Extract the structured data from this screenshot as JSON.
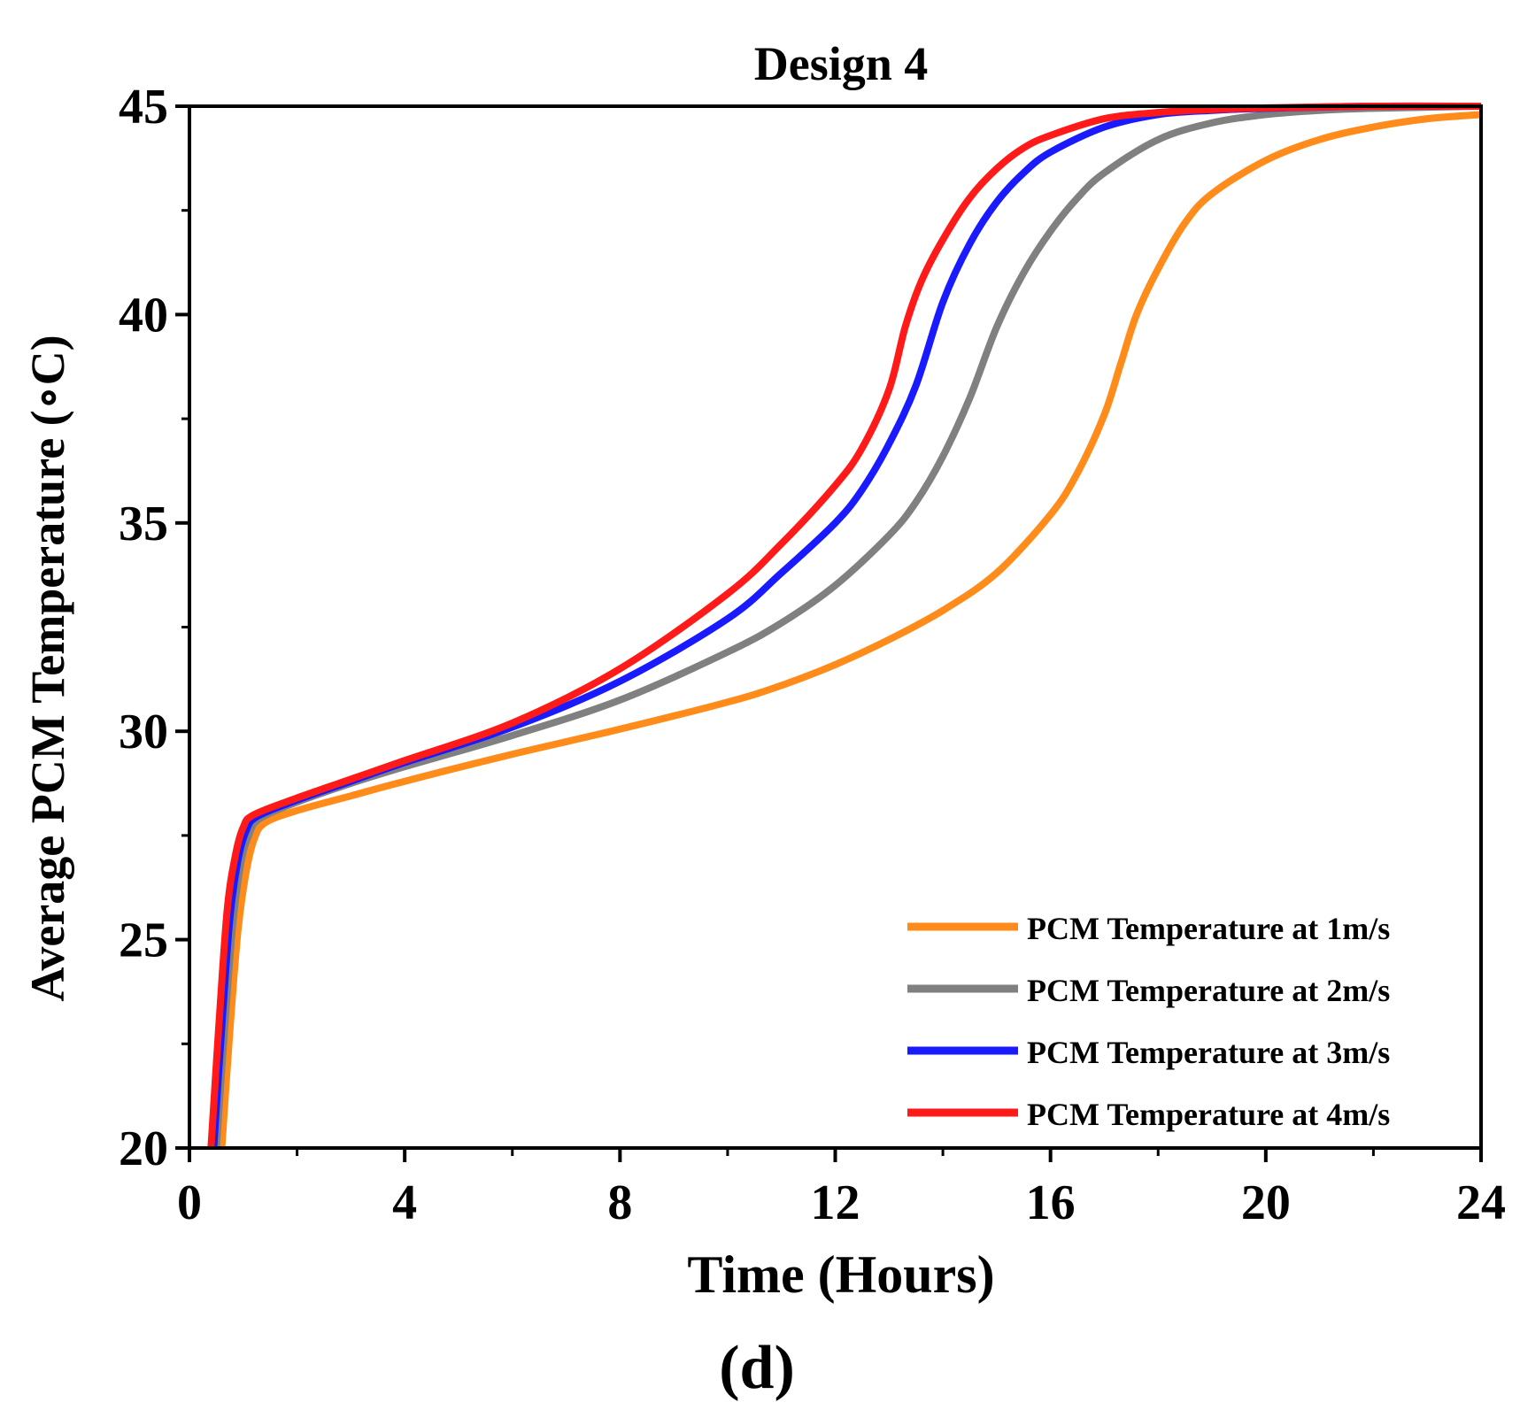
{
  "chart_data": {
    "type": "line",
    "title": "Design 4",
    "xlabel": "Time (Hours)",
    "ylabel": "Average PCM Temperature (∘C)",
    "panel_label": "(d)",
    "xlim": [
      0,
      24
    ],
    "ylim": [
      20,
      45
    ],
    "xticks": [
      0,
      4,
      8,
      12,
      16,
      20,
      24
    ],
    "yticks": [
      20,
      25,
      30,
      35,
      40,
      45
    ],
    "legend_position": "bottom-right",
    "series": [
      {
        "name": "PCM Temperature at 1m/s",
        "color": "#ff8c1a",
        "x": [
          0.6,
          0.75,
          0.9,
          1.05,
          1.2,
          1.4,
          2,
          3,
          4,
          6,
          8,
          10,
          11,
          12,
          13,
          14,
          15,
          16,
          16.5,
          17,
          17.3,
          17.6,
          18,
          18.5,
          19,
          20,
          21,
          22,
          23,
          24
        ],
        "y": [
          20,
          22.8,
          25.2,
          26.6,
          27.4,
          27.8,
          28.1,
          28.45,
          28.8,
          29.45,
          30.05,
          30.7,
          31.1,
          31.6,
          32.2,
          32.9,
          33.8,
          35.2,
          36.2,
          37.6,
          38.8,
          40.0,
          41.1,
          42.2,
          42.9,
          43.7,
          44.2,
          44.5,
          44.7,
          44.8
        ]
      },
      {
        "name": "PCM Temperature at 2m/s",
        "color": "#808080",
        "x": [
          0.5,
          0.65,
          0.8,
          0.95,
          1.1,
          1.3,
          2,
          3,
          4,
          6,
          8,
          10,
          11,
          12,
          13,
          13.5,
          14,
          14.5,
          15,
          15.5,
          16,
          16.5,
          17,
          18,
          19,
          20,
          21,
          22,
          24
        ],
        "y": [
          20,
          22.8,
          25.3,
          26.8,
          27.5,
          27.9,
          28.3,
          28.75,
          29.15,
          29.9,
          30.75,
          31.9,
          32.6,
          33.5,
          34.7,
          35.5,
          36.6,
          38.0,
          39.7,
          41.0,
          42.0,
          42.8,
          43.4,
          44.2,
          44.6,
          44.8,
          44.9,
          44.95,
          45.0
        ]
      },
      {
        "name": "PCM Temperature at 3m/s",
        "color": "#1a1aff",
        "x": [
          0.45,
          0.6,
          0.75,
          0.9,
          1.05,
          1.25,
          2,
          3,
          4,
          6,
          8,
          10,
          11,
          12,
          12.5,
          13,
          13.5,
          14,
          14.5,
          15,
          15.5,
          16,
          17,
          18,
          19,
          20,
          22,
          24
        ],
        "y": [
          20,
          22.9,
          25.5,
          26.9,
          27.6,
          27.95,
          28.35,
          28.8,
          29.25,
          30.1,
          31.2,
          32.7,
          33.8,
          35.0,
          35.8,
          36.9,
          38.3,
          40.3,
          41.7,
          42.7,
          43.4,
          43.9,
          44.5,
          44.8,
          44.9,
          44.95,
          45.0,
          45.0
        ]
      },
      {
        "name": "PCM Temperature at 4m/s",
        "color": "#ff1a1a",
        "x": [
          0.4,
          0.55,
          0.7,
          0.85,
          1.0,
          1.2,
          2,
          3,
          4,
          6,
          8,
          10,
          11,
          12,
          12.5,
          13,
          13.3,
          13.6,
          14,
          14.5,
          15,
          15.5,
          16,
          17,
          18,
          19,
          20,
          22,
          24
        ],
        "y": [
          20,
          23.0,
          25.7,
          27.0,
          27.7,
          28.0,
          28.4,
          28.85,
          29.3,
          30.2,
          31.5,
          33.3,
          34.5,
          35.9,
          36.8,
          38.2,
          39.7,
          40.8,
          41.8,
          42.8,
          43.5,
          44.0,
          44.3,
          44.7,
          44.85,
          44.92,
          44.96,
          45.0,
          45.0
        ]
      }
    ]
  }
}
